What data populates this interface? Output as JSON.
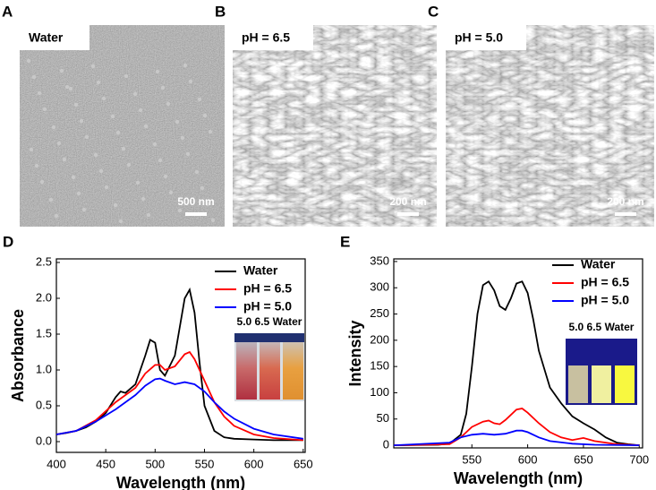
{
  "images": [
    {
      "label": "A",
      "caption": "Water",
      "scale_bar": "500 nm"
    },
    {
      "label": "B",
      "caption": "pH = 6.5",
      "scale_bar": "200 nm"
    },
    {
      "label": "C",
      "caption": "pH = 5.0",
      "scale_bar": "200 nm"
    }
  ],
  "chart_data": [
    {
      "panel": "D",
      "type": "line",
      "x_label": "Wavelength (nm)",
      "y_label": "Absorbance",
      "inset_label": "5.0 6.5 Water",
      "xlim": [
        400,
        652
      ],
      "xticks": [
        400,
        450,
        500,
        550,
        600,
        650
      ],
      "ylim": [
        -0.15,
        2.55
      ],
      "yticks": [
        {
          "value": 0,
          "label": "0.0"
        },
        0.5,
        {
          "value": 1,
          "label": "1.0"
        },
        1.5,
        {
          "value": 2,
          "label": "2.0"
        },
        2.5
      ],
      "series": [
        {
          "name": "Water",
          "color": "#000000",
          "x": [
            400,
            410,
            420,
            430,
            440,
            450,
            460,
            465,
            470,
            480,
            490,
            495,
            500,
            505,
            510,
            520,
            525,
            530,
            535,
            540,
            545,
            550,
            560,
            570,
            580,
            600,
            620,
            650
          ],
          "values": [
            0.1,
            0.12,
            0.15,
            0.2,
            0.28,
            0.4,
            0.62,
            0.7,
            0.68,
            0.8,
            1.2,
            1.42,
            1.38,
            1.0,
            0.92,
            1.2,
            1.6,
            2.0,
            2.12,
            1.8,
            1.1,
            0.5,
            0.15,
            0.06,
            0.04,
            0.03,
            0.02,
            0.02
          ]
        },
        {
          "name": "pH = 6.5",
          "color": "#ff0000",
          "x": [
            400,
            420,
            440,
            460,
            470,
            480,
            490,
            500,
            505,
            510,
            520,
            530,
            535,
            540,
            550,
            560,
            570,
            580,
            600,
            620,
            650
          ],
          "values": [
            0.1,
            0.15,
            0.3,
            0.55,
            0.65,
            0.75,
            0.95,
            1.07,
            1.07,
            1.0,
            1.05,
            1.22,
            1.25,
            1.15,
            0.85,
            0.55,
            0.35,
            0.22,
            0.1,
            0.05,
            0.02
          ]
        },
        {
          "name": "pH = 5.0",
          "color": "#0000ff",
          "x": [
            400,
            420,
            440,
            460,
            480,
            490,
            500,
            505,
            510,
            520,
            530,
            540,
            550,
            560,
            570,
            580,
            600,
            620,
            650
          ],
          "values": [
            0.1,
            0.15,
            0.28,
            0.45,
            0.65,
            0.78,
            0.87,
            0.88,
            0.85,
            0.8,
            0.83,
            0.8,
            0.7,
            0.55,
            0.42,
            0.32,
            0.18,
            0.1,
            0.04
          ]
        }
      ]
    },
    {
      "panel": "E",
      "type": "line",
      "x_label": "Wavelength (nm)",
      "y_label": "Intensity",
      "inset_label": "5.0 6.5 Water",
      "xlim": [
        480,
        703
      ],
      "xticks": [
        550,
        600,
        650,
        700
      ],
      "ylim": [
        -5,
        355
      ],
      "yticks": [
        0,
        50,
        100,
        150,
        200,
        250,
        300,
        350
      ],
      "series": [
        {
          "name": "Water",
          "color": "#000000",
          "x": [
            480,
            520,
            530,
            540,
            545,
            550,
            555,
            560,
            565,
            570,
            575,
            580,
            585,
            590,
            595,
            600,
            605,
            610,
            620,
            630,
            640,
            650,
            660,
            670,
            680,
            690,
            700
          ],
          "values": [
            0,
            1,
            3,
            20,
            60,
            150,
            250,
            305,
            312,
            295,
            265,
            258,
            280,
            308,
            312,
            290,
            240,
            180,
            110,
            80,
            55,
            42,
            30,
            15,
            5,
            2,
            0
          ]
        },
        {
          "name": "pH = 6.5",
          "color": "#ff0000",
          "x": [
            480,
            530,
            540,
            550,
            560,
            565,
            570,
            575,
            580,
            590,
            595,
            600,
            610,
            620,
            630,
            640,
            650,
            660,
            680,
            700
          ],
          "values": [
            0,
            2,
            15,
            35,
            45,
            47,
            42,
            40,
            48,
            68,
            70,
            62,
            42,
            25,
            15,
            10,
            14,
            8,
            2,
            0
          ]
        },
        {
          "name": "pH = 5.0",
          "color": "#0000ff",
          "x": [
            480,
            530,
            540,
            550,
            560,
            570,
            580,
            590,
            595,
            600,
            610,
            620,
            640,
            660,
            700
          ],
          "values": [
            0,
            5,
            15,
            20,
            22,
            20,
            22,
            28,
            28,
            25,
            15,
            8,
            3,
            1,
            0
          ]
        }
      ]
    }
  ]
}
